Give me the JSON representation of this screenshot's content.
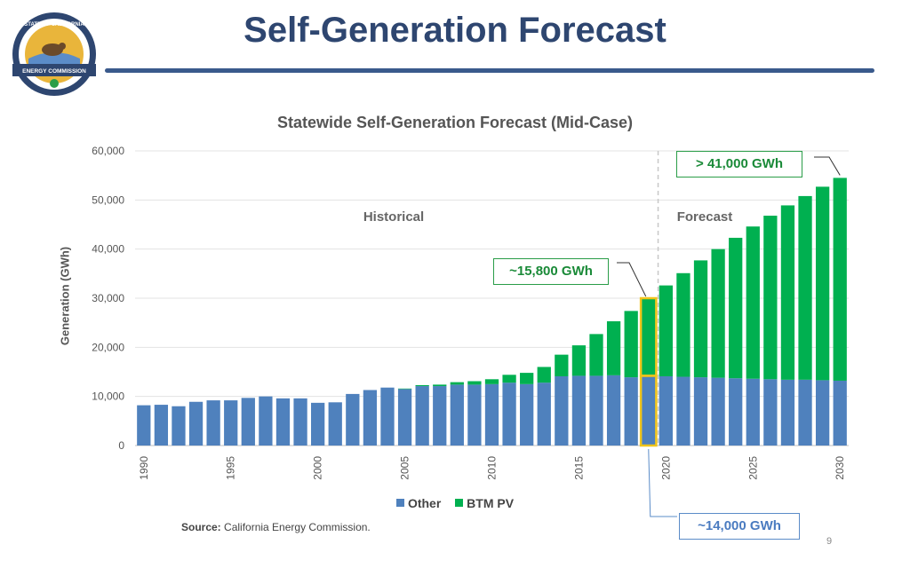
{
  "header": {
    "title": "Self-Generation Forecast"
  },
  "logo": {
    "top_text": "STATE OF CALIFORNIA",
    "bottom_text": "ENERGY COMMISSION"
  },
  "source": {
    "label": "Source:",
    "text": "California Energy Commission."
  },
  "page_number": "9",
  "colors": {
    "other": "#4f81bd",
    "btm_pv": "#00b050",
    "highlight": "#f0c419",
    "title": "#2e4670"
  },
  "chart_data": {
    "type": "bar",
    "stacked": true,
    "title": "Statewide Self-Generation Forecast (Mid-Case)",
    "ylabel": "Generation (GWh)",
    "xlabel": "",
    "ylim": [
      0,
      60000
    ],
    "yticks": [
      0,
      10000,
      20000,
      30000,
      40000,
      50000,
      60000
    ],
    "ytick_labels": [
      "0",
      "10,000",
      "20,000",
      "30,000",
      "40,000",
      "50,000",
      "60,000"
    ],
    "x": [
      1990,
      1991,
      1992,
      1993,
      1994,
      1995,
      1996,
      1997,
      1998,
      1999,
      2000,
      2001,
      2002,
      2003,
      2004,
      2005,
      2006,
      2007,
      2008,
      2009,
      2010,
      2011,
      2012,
      2013,
      2014,
      2015,
      2016,
      2017,
      2018,
      2019,
      2020,
      2021,
      2022,
      2023,
      2024,
      2025,
      2026,
      2027,
      2028,
      2029,
      2030
    ],
    "xtick_labels": [
      "1990",
      "1995",
      "2000",
      "2005",
      "2010",
      "2015",
      "2020",
      "2025",
      "2030"
    ],
    "series": [
      {
        "name": "Other",
        "values": [
          8200,
          8300,
          8000,
          8900,
          9200,
          9200,
          9700,
          10000,
          9600,
          9600,
          8700,
          8800,
          10500,
          11300,
          11800,
          11500,
          12100,
          12100,
          12400,
          12400,
          12500,
          12800,
          12500,
          12800,
          14100,
          14200,
          14200,
          14300,
          13900,
          14200,
          14100,
          14000,
          13900,
          13800,
          13700,
          13600,
          13500,
          13400,
          13400,
          13300,
          13200
        ]
      },
      {
        "name": "BTM PV",
        "values": [
          0,
          0,
          0,
          0,
          0,
          0,
          0,
          0,
          0,
          0,
          0,
          0,
          0,
          0,
          0,
          100,
          200,
          300,
          500,
          700,
          1000,
          1600,
          2300,
          3200,
          4400,
          6200,
          8500,
          11000,
          13500,
          15800,
          18500,
          21100,
          23800,
          26200,
          28600,
          31000,
          33300,
          35500,
          37400,
          39400,
          41300
        ]
      }
    ],
    "legend": [
      "Other",
      "BTM PV"
    ],
    "legend_position": "bottom",
    "annotations": {
      "historical": "Historical",
      "forecast": "Forecast",
      "callout_2030": "> 41,000 GWh",
      "callout_2019_pv": "~15,800 GWh",
      "callout_2019_other": "~14,000 GWh"
    }
  }
}
